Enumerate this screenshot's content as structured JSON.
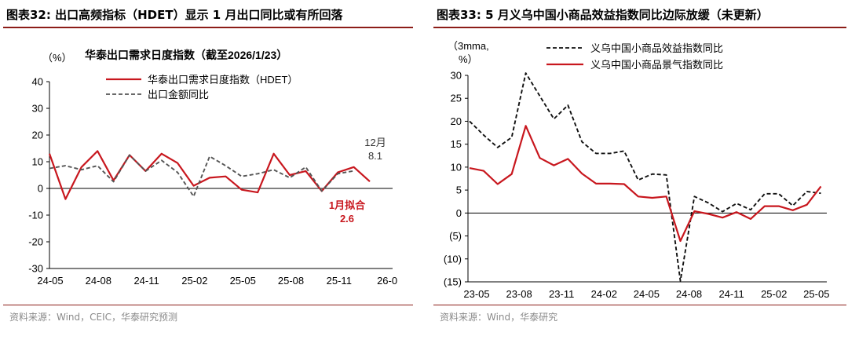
{
  "figures": [
    {
      "title": "图表32:  出口高频指标（HDET）显示 1 月出口同比或有所回落",
      "source": "资料来源：Wind，CEIC，华泰研究预测"
    },
    {
      "title": "图表33:  5 月义乌中国小商品效益指数同比边际放缓（未更新）",
      "source": "资料来源：Wind，华泰研究"
    }
  ],
  "chart_data": [
    {
      "type": "line",
      "title": "华泰出口需求日度指数（截至2026/1/23）",
      "ylabel": "（%）",
      "ylim": [
        -30,
        40
      ],
      "yticks": [
        40,
        30,
        20,
        10,
        0,
        -10,
        -20,
        -30
      ],
      "x_tick_labels": [
        "24-05",
        "24-08",
        "24-11",
        "25-02",
        "25-05",
        "25-08",
        "25-11",
        "26-0"
      ],
      "legend": "top-center",
      "grid": false,
      "series": [
        {
          "name": "华泰出口需求日度指数（HDET）",
          "color": "#c8171e",
          "style": "solid",
          "values": [
            13,
            -4,
            8,
            14,
            3,
            12.5,
            6.5,
            13,
            9.5,
            1,
            4,
            4.5,
            -0.5,
            -1.5,
            13,
            5,
            6.5,
            -1,
            6,
            8,
            2.6
          ]
        },
        {
          "name": "出口金额同比",
          "color": "#555555",
          "style": "dashed",
          "values": [
            7.5,
            8.5,
            7,
            8.5,
            2.5,
            12.5,
            6.5,
            10.5,
            6,
            -3,
            12,
            8.5,
            4.5,
            5.5,
            7,
            4,
            8,
            -1,
            5.5,
            6.6
          ]
        }
      ],
      "annotations": [
        {
          "text_lines": [
            "12月",
            "8.1"
          ],
          "color": "#333333"
        },
        {
          "text_lines": [
            "1月拟合",
            "2.6"
          ],
          "color": "#c8171e"
        }
      ]
    },
    {
      "type": "line",
      "ylabel_lines": [
        "（3mma,",
        "%）"
      ],
      "ylim": [
        -15,
        30
      ],
      "yticks": [
        "30",
        "25",
        "20",
        "15",
        "10",
        "5",
        "0",
        "(5)",
        "(10)",
        "(15)"
      ],
      "x_tick_labels": [
        "23-05",
        "23-08",
        "23-11",
        "24-02",
        "24-05",
        "24-08",
        "24-11",
        "25-02",
        "25-05"
      ],
      "legend": "top-center",
      "grid": false,
      "series": [
        {
          "name": "义乌中国小商品效益指数同比",
          "color": "#111111",
          "style": "dashed",
          "values": [
            20,
            17,
            14.3,
            16.5,
            30.5,
            25.5,
            20.5,
            23.5,
            15.5,
            13,
            13,
            13.5,
            7.2,
            8.5,
            8.3,
            -14.8,
            3.6,
            2.2,
            0.3,
            2.1,
            0.7,
            4.2,
            4.2,
            1.6,
            4.7,
            4.3
          ]
        },
        {
          "name": "义乌中国小商品景气指数同比",
          "color": "#c8171e",
          "style": "solid",
          "values": [
            9.8,
            9.2,
            6.3,
            8.5,
            19,
            12,
            10.4,
            11.8,
            8.6,
            6.4,
            6.4,
            6.3,
            3.6,
            3.3,
            3.6,
            -6.1,
            0.4,
            -0.2,
            -1,
            0.2,
            -1.3,
            1.5,
            1.5,
            0.6,
            1.8,
            5.8
          ]
        }
      ]
    }
  ]
}
